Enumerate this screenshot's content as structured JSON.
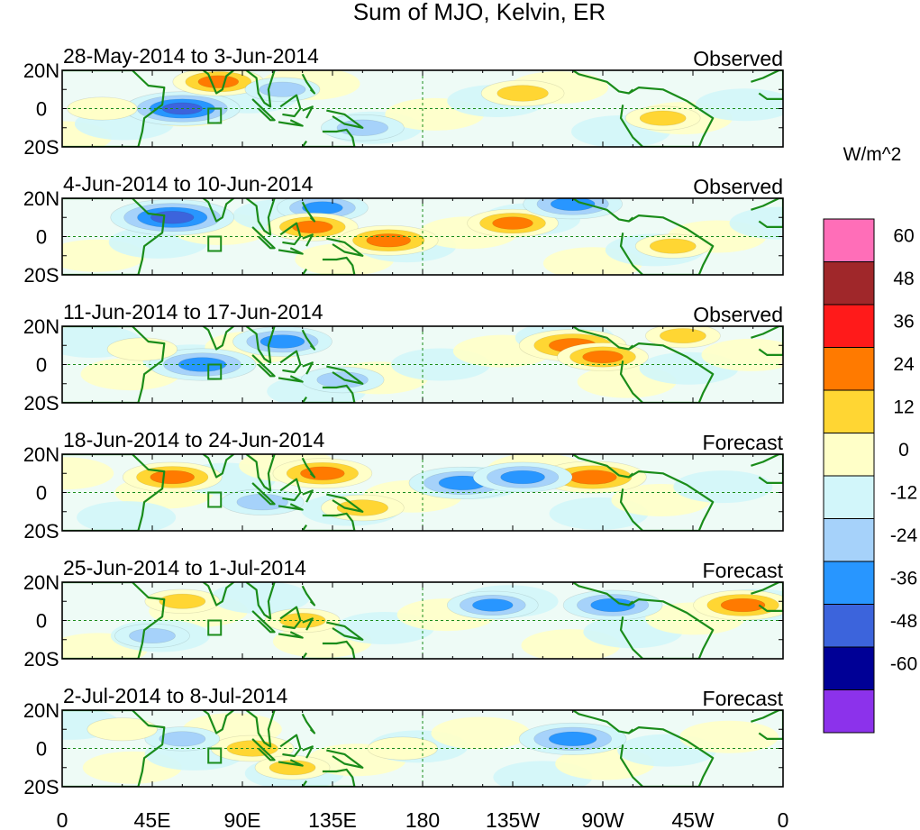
{
  "chart_data": {
    "type": "heatmap",
    "title": "Sum of MJO, Kelvin, ER",
    "units_label": "W/m^2",
    "x_ticks": [
      "0",
      "45E",
      "90E",
      "135E",
      "180",
      "135W",
      "90W",
      "45W",
      "0"
    ],
    "y_ticks": [
      "20N",
      "0",
      "20S"
    ],
    "xlim": [
      0,
      360
    ],
    "ylim": [
      -20,
      20
    ],
    "colorbar": {
      "labels": [
        "60",
        "48",
        "36",
        "24",
        "12",
        "0",
        "-12",
        "-24",
        "-36",
        "-48",
        "-60"
      ],
      "colors": [
        "#ff6eb8",
        "#a0272a",
        "#ff1a1a",
        "#ff7a00",
        "#ffd633",
        "#ffffc8",
        "#d2f6fa",
        "#a6d2fa",
        "#2896ff",
        "#3c64dc",
        "#000096",
        "#8c32eb"
      ]
    },
    "panels": [
      {
        "date_range": "28-May-2014 to 3-Jun-2014",
        "status": "Observed",
        "features": [
          {
            "lon": 60,
            "lat": 0,
            "value": -40
          },
          {
            "lon": 78,
            "lat": 14,
            "value": 25
          },
          {
            "lon": 150,
            "lat": -10,
            "value": -20
          },
          {
            "lon": 230,
            "lat": 8,
            "value": 20
          },
          {
            "lon": 300,
            "lat": -5,
            "value": 15
          },
          {
            "lon": 110,
            "lat": 10,
            "value": -15
          },
          {
            "lon": 20,
            "lat": 0,
            "value": 12
          }
        ]
      },
      {
        "date_range": "4-Jun-2014 to 10-Jun-2014",
        "status": "Observed",
        "features": [
          {
            "lon": 55,
            "lat": 10,
            "value": -45
          },
          {
            "lon": 130,
            "lat": 15,
            "value": -25
          },
          {
            "lon": 125,
            "lat": 5,
            "value": 25
          },
          {
            "lon": 163,
            "lat": -2,
            "value": 30
          },
          {
            "lon": 225,
            "lat": 7,
            "value": 25
          },
          {
            "lon": 255,
            "lat": 17,
            "value": -30
          },
          {
            "lon": 305,
            "lat": -5,
            "value": 15
          }
        ]
      },
      {
        "date_range": "11-Jun-2014 to 17-Jun-2014",
        "status": "Observed",
        "features": [
          {
            "lon": 255,
            "lat": 10,
            "value": 35
          },
          {
            "lon": 270,
            "lat": 4,
            "value": 25
          },
          {
            "lon": 70,
            "lat": 0,
            "value": -35
          },
          {
            "lon": 110,
            "lat": 12,
            "value": -30
          },
          {
            "lon": 140,
            "lat": -8,
            "value": -20
          },
          {
            "lon": 310,
            "lat": 15,
            "value": 15
          },
          {
            "lon": 40,
            "lat": 8,
            "value": 12
          }
        ]
      },
      {
        "date_range": "18-Jun-2014 to 24-Jun-2014",
        "status": "Forecast",
        "features": [
          {
            "lon": 55,
            "lat": 8,
            "value": 30
          },
          {
            "lon": 130,
            "lat": 10,
            "value": 30
          },
          {
            "lon": 265,
            "lat": 8,
            "value": 35
          },
          {
            "lon": 200,
            "lat": 5,
            "value": -35
          },
          {
            "lon": 230,
            "lat": 8,
            "value": -30
          },
          {
            "lon": 100,
            "lat": -5,
            "value": -20
          },
          {
            "lon": 150,
            "lat": -8,
            "value": 20
          }
        ]
      },
      {
        "date_range": "25-Jun-2014 to 1-Jul-2014",
        "status": "Forecast",
        "features": [
          {
            "lon": 215,
            "lat": 8,
            "value": -25
          },
          {
            "lon": 275,
            "lat": 8,
            "value": -30
          },
          {
            "lon": 340,
            "lat": 8,
            "value": 30
          },
          {
            "lon": 60,
            "lat": 10,
            "value": 15
          },
          {
            "lon": 120,
            "lat": 0,
            "value": 15
          },
          {
            "lon": 45,
            "lat": -8,
            "value": -15
          }
        ]
      },
      {
        "date_range": "2-Jul-2014 to 8-Jul-2014",
        "status": "Forecast",
        "features": [
          {
            "lon": 255,
            "lat": 5,
            "value": -35
          },
          {
            "lon": 95,
            "lat": 0,
            "value": 20
          },
          {
            "lon": 115,
            "lat": -10,
            "value": 15
          },
          {
            "lon": 170,
            "lat": 0,
            "value": 12
          },
          {
            "lon": 60,
            "lat": 5,
            "value": -15
          },
          {
            "lon": 30,
            "lat": 10,
            "value": 12
          }
        ]
      }
    ]
  }
}
